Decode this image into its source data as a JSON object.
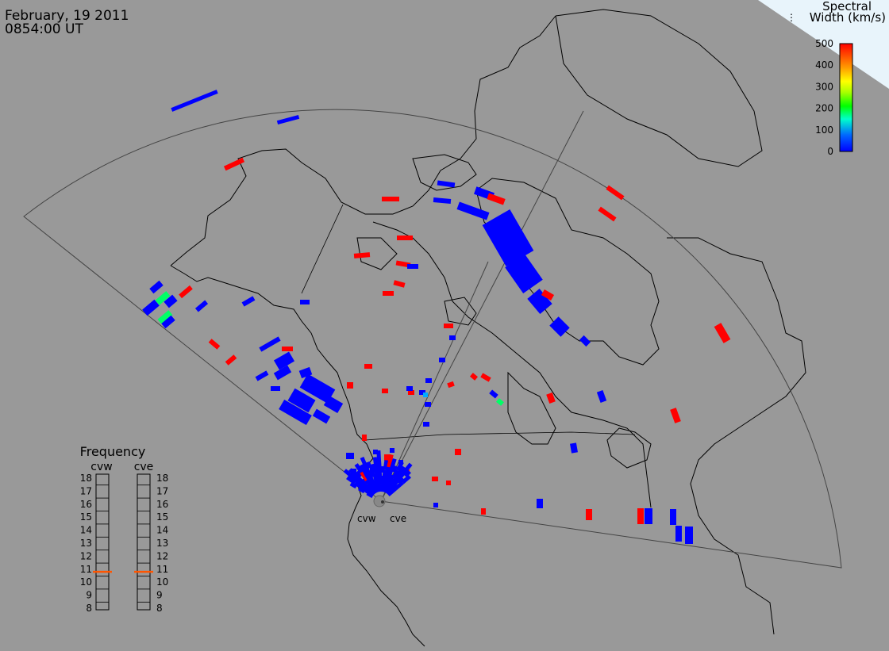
{
  "header": {
    "date": "February, 19 2011",
    "time": "0854:00 UT"
  },
  "colorbar": {
    "title_line1": "Spectral",
    "title_line2": "Width (km/s)",
    "ticks": [
      "500",
      "400",
      "300",
      "200",
      "100",
      "0"
    ],
    "colors": [
      "#0000ff",
      "#00aaff",
      "#00ffaa",
      "#00ff00",
      "#aaff00",
      "#ffff00",
      "#ffaa00",
      "#ff5500",
      "#ff0000"
    ]
  },
  "frequency_panel": {
    "title": "Frequency",
    "radars": [
      "cvw",
      "cve"
    ],
    "levels": [
      "18",
      "17",
      "16",
      "15",
      "14",
      "13",
      "12",
      "11",
      "10",
      "9",
      "8"
    ],
    "cvw_frequency": 10.8,
    "cve_frequency": 10.8,
    "marker_color": "#ff5500"
  },
  "radar_sites": {
    "west_label": "cvw",
    "east_label": "cve"
  },
  "colors": {
    "background": "#999999",
    "low_width": "#0000ff",
    "high_width": "#ff0000",
    "mid_width": "#00ff66"
  }
}
